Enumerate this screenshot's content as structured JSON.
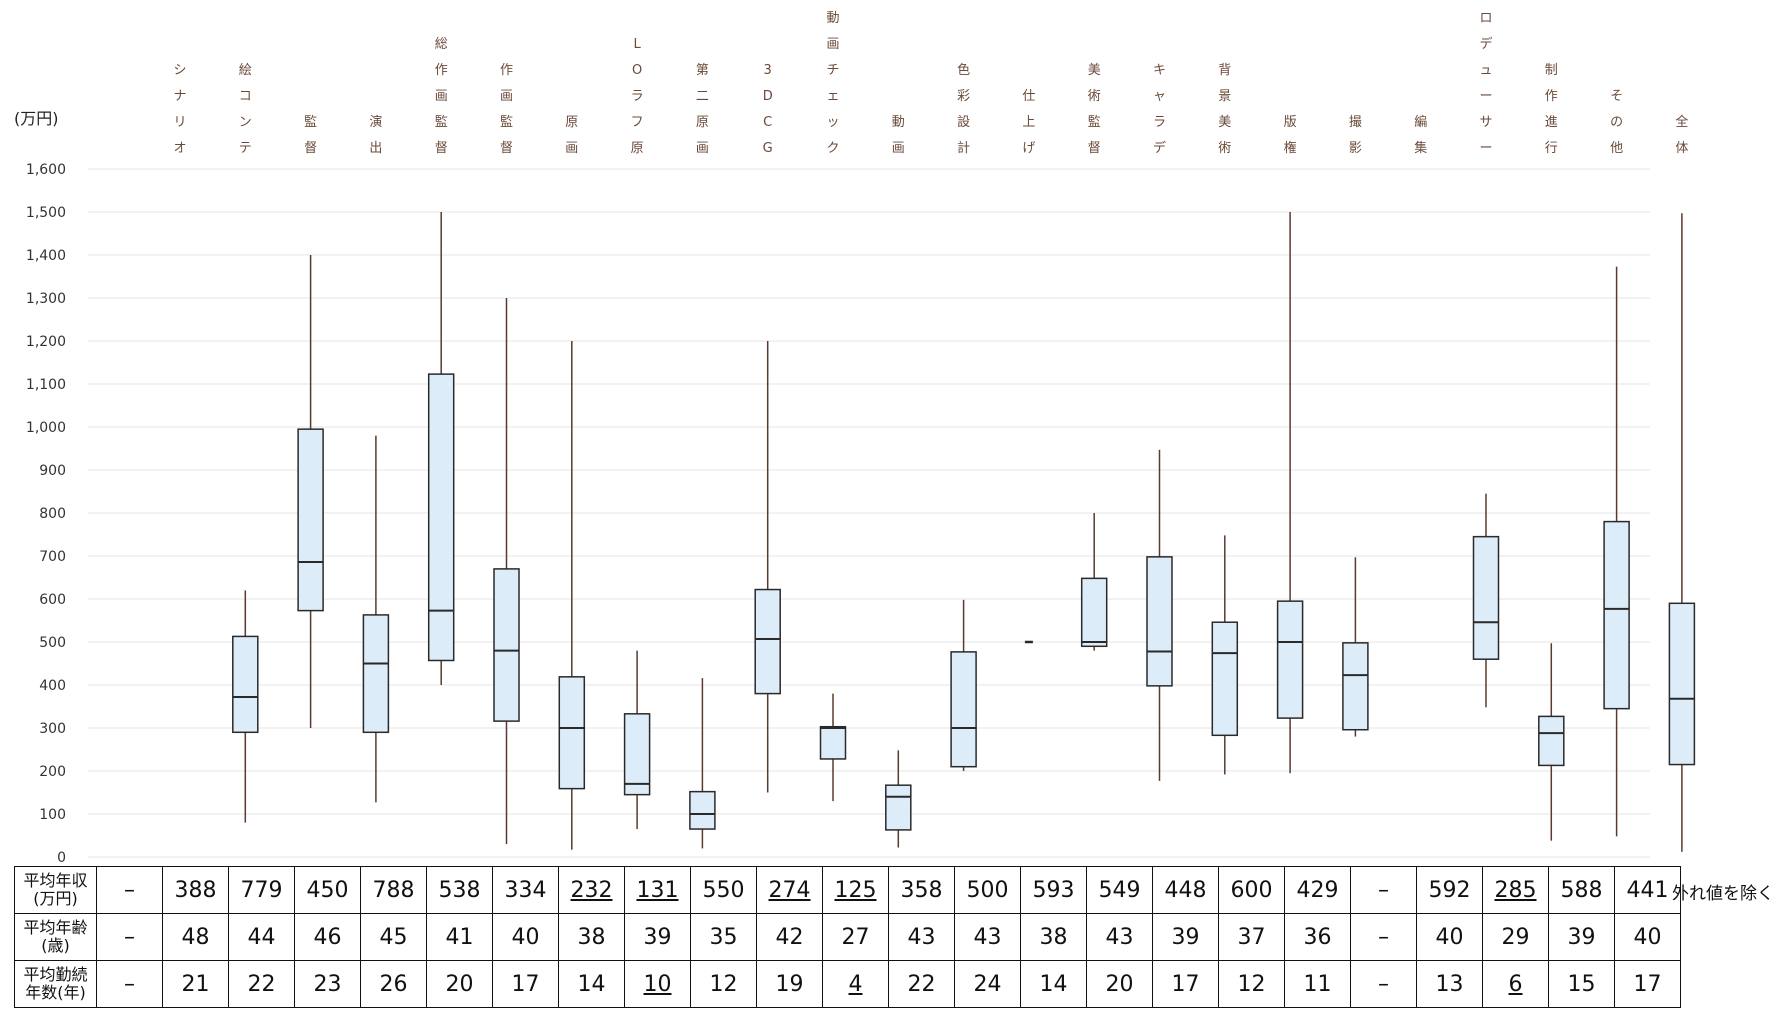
{
  "chart_data": {
    "type": "box",
    "y_unit_label": "(万円)",
    "ylim": [
      0,
      1600
    ],
    "y_ticks": [
      "0",
      "100",
      "200",
      "300",
      "400",
      "500",
      "600",
      "700",
      "800",
      "900",
      "1,000",
      "1,100",
      "1,200",
      "1,300",
      "1,400",
      "1,500",
      "1,600"
    ],
    "grid": true,
    "categories": [
      {
        "label": "シナリオ",
        "min": null,
        "q1": null,
        "median": null,
        "q3": null,
        "max": null
      },
      {
        "label": "絵コンテ",
        "min": 80,
        "q1": 290,
        "median": 372,
        "q3": 513,
        "max": 620
      },
      {
        "label": "監督",
        "min": 300,
        "q1": 573,
        "median": 686,
        "q3": 995,
        "max": 1400
      },
      {
        "label": "演出",
        "min": 127,
        "q1": 290,
        "median": 450,
        "q3": 563,
        "max": 980
      },
      {
        "label": "総作画監督",
        "min": 400,
        "q1": 457,
        "median": 573,
        "q3": 1123,
        "max": 1500
      },
      {
        "label": "作画監督",
        "min": 30,
        "q1": 316,
        "median": 480,
        "q3": 670,
        "max": 1300
      },
      {
        "label": "原画",
        "min": 17,
        "q1": 159,
        "median": 300,
        "q3": 419,
        "max": 1200
      },
      {
        "label": "LOラフ原",
        "min": 65,
        "q1": 145,
        "median": 170,
        "q3": 333,
        "max": 480
      },
      {
        "label": "第二原画",
        "min": 20,
        "q1": 65,
        "median": 100,
        "q3": 152,
        "max": 416
      },
      {
        "label": "3DCG",
        "min": 150,
        "q1": 380,
        "median": 507,
        "q3": 622,
        "max": 1200
      },
      {
        "label": "動画チェック",
        "min": 130,
        "q1": 228,
        "median": 300,
        "q3": 303,
        "max": 380
      },
      {
        "label": "動画",
        "min": 22,
        "q1": 63,
        "median": 140,
        "q3": 167,
        "max": 248
      },
      {
        "label": "色彩設計",
        "min": 200,
        "q1": 210,
        "median": 300,
        "q3": 477,
        "max": 598
      },
      {
        "label": "仕上げ",
        "min": 500,
        "q1": 500,
        "median": 500,
        "q3": 500,
        "max": 500
      },
      {
        "label": "美術監督",
        "min": 480,
        "q1": 490,
        "median": 500,
        "q3": 648,
        "max": 800
      },
      {
        "label": "キャラデ",
        "min": 177,
        "q1": 398,
        "median": 478,
        "q3": 698,
        "max": 947
      },
      {
        "label": "背景美術",
        "min": 192,
        "q1": 283,
        "median": 474,
        "q3": 546,
        "max": 748
      },
      {
        "label": "版権",
        "min": 195,
        "q1": 323,
        "median": 500,
        "q3": 595,
        "max": 1500
      },
      {
        "label": "撮影",
        "min": 280,
        "q1": 296,
        "median": 423,
        "q3": 498,
        "max": 697
      },
      {
        "label": "編集",
        "min": null,
        "q1": null,
        "median": null,
        "q3": null,
        "max": null
      },
      {
        "label": "プロデューサー",
        "min": 348,
        "q1": 460,
        "median": 546,
        "q3": 745,
        "max": 845
      },
      {
        "label": "制作進行",
        "min": 38,
        "q1": 213,
        "median": 288,
        "q3": 327,
        "max": 497
      },
      {
        "label": "その他",
        "min": 48,
        "q1": 345,
        "median": 577,
        "q3": 780,
        "max": 1373
      },
      {
        "label": "全体",
        "min": 12,
        "q1": 215,
        "median": 368,
        "q3": 590,
        "max": 1497
      }
    ]
  },
  "table": {
    "rows": [
      {
        "label": "平均年収\n(万円)",
        "values": [
          "–",
          "388",
          "779",
          "450",
          "788",
          "538",
          "334",
          "232",
          "131",
          "550",
          "274",
          "125",
          "358",
          "500",
          "593",
          "549",
          "448",
          "600",
          "429",
          "–",
          "592",
          "285",
          "588",
          "441"
        ],
        "underlined": [
          7,
          8,
          10,
          11,
          21
        ]
      },
      {
        "label": "平均年齢\n(歳)",
        "values": [
          "–",
          "48",
          "44",
          "46",
          "45",
          "41",
          "40",
          "38",
          "39",
          "35",
          "42",
          "27",
          "43",
          "43",
          "38",
          "43",
          "39",
          "37",
          "36",
          "–",
          "40",
          "29",
          "39",
          "40"
        ],
        "underlined": []
      },
      {
        "label": "平均勤続\n年数(年)",
        "values": [
          "–",
          "21",
          "22",
          "23",
          "26",
          "20",
          "17",
          "14",
          "10",
          "12",
          "19",
          "4",
          "22",
          "24",
          "14",
          "20",
          "17",
          "12",
          "11",
          "–",
          "13",
          "6",
          "15",
          "17"
        ],
        "underlined": [
          8,
          11,
          21
        ]
      }
    ],
    "note": "外れ値を除く"
  },
  "colors": {
    "box_fill": "#dcecf8",
    "box_stroke": "#2a2a2a",
    "whisker": "#5a3a30",
    "grid": "#e6e6e6",
    "category_text": "#6b4a3a"
  }
}
